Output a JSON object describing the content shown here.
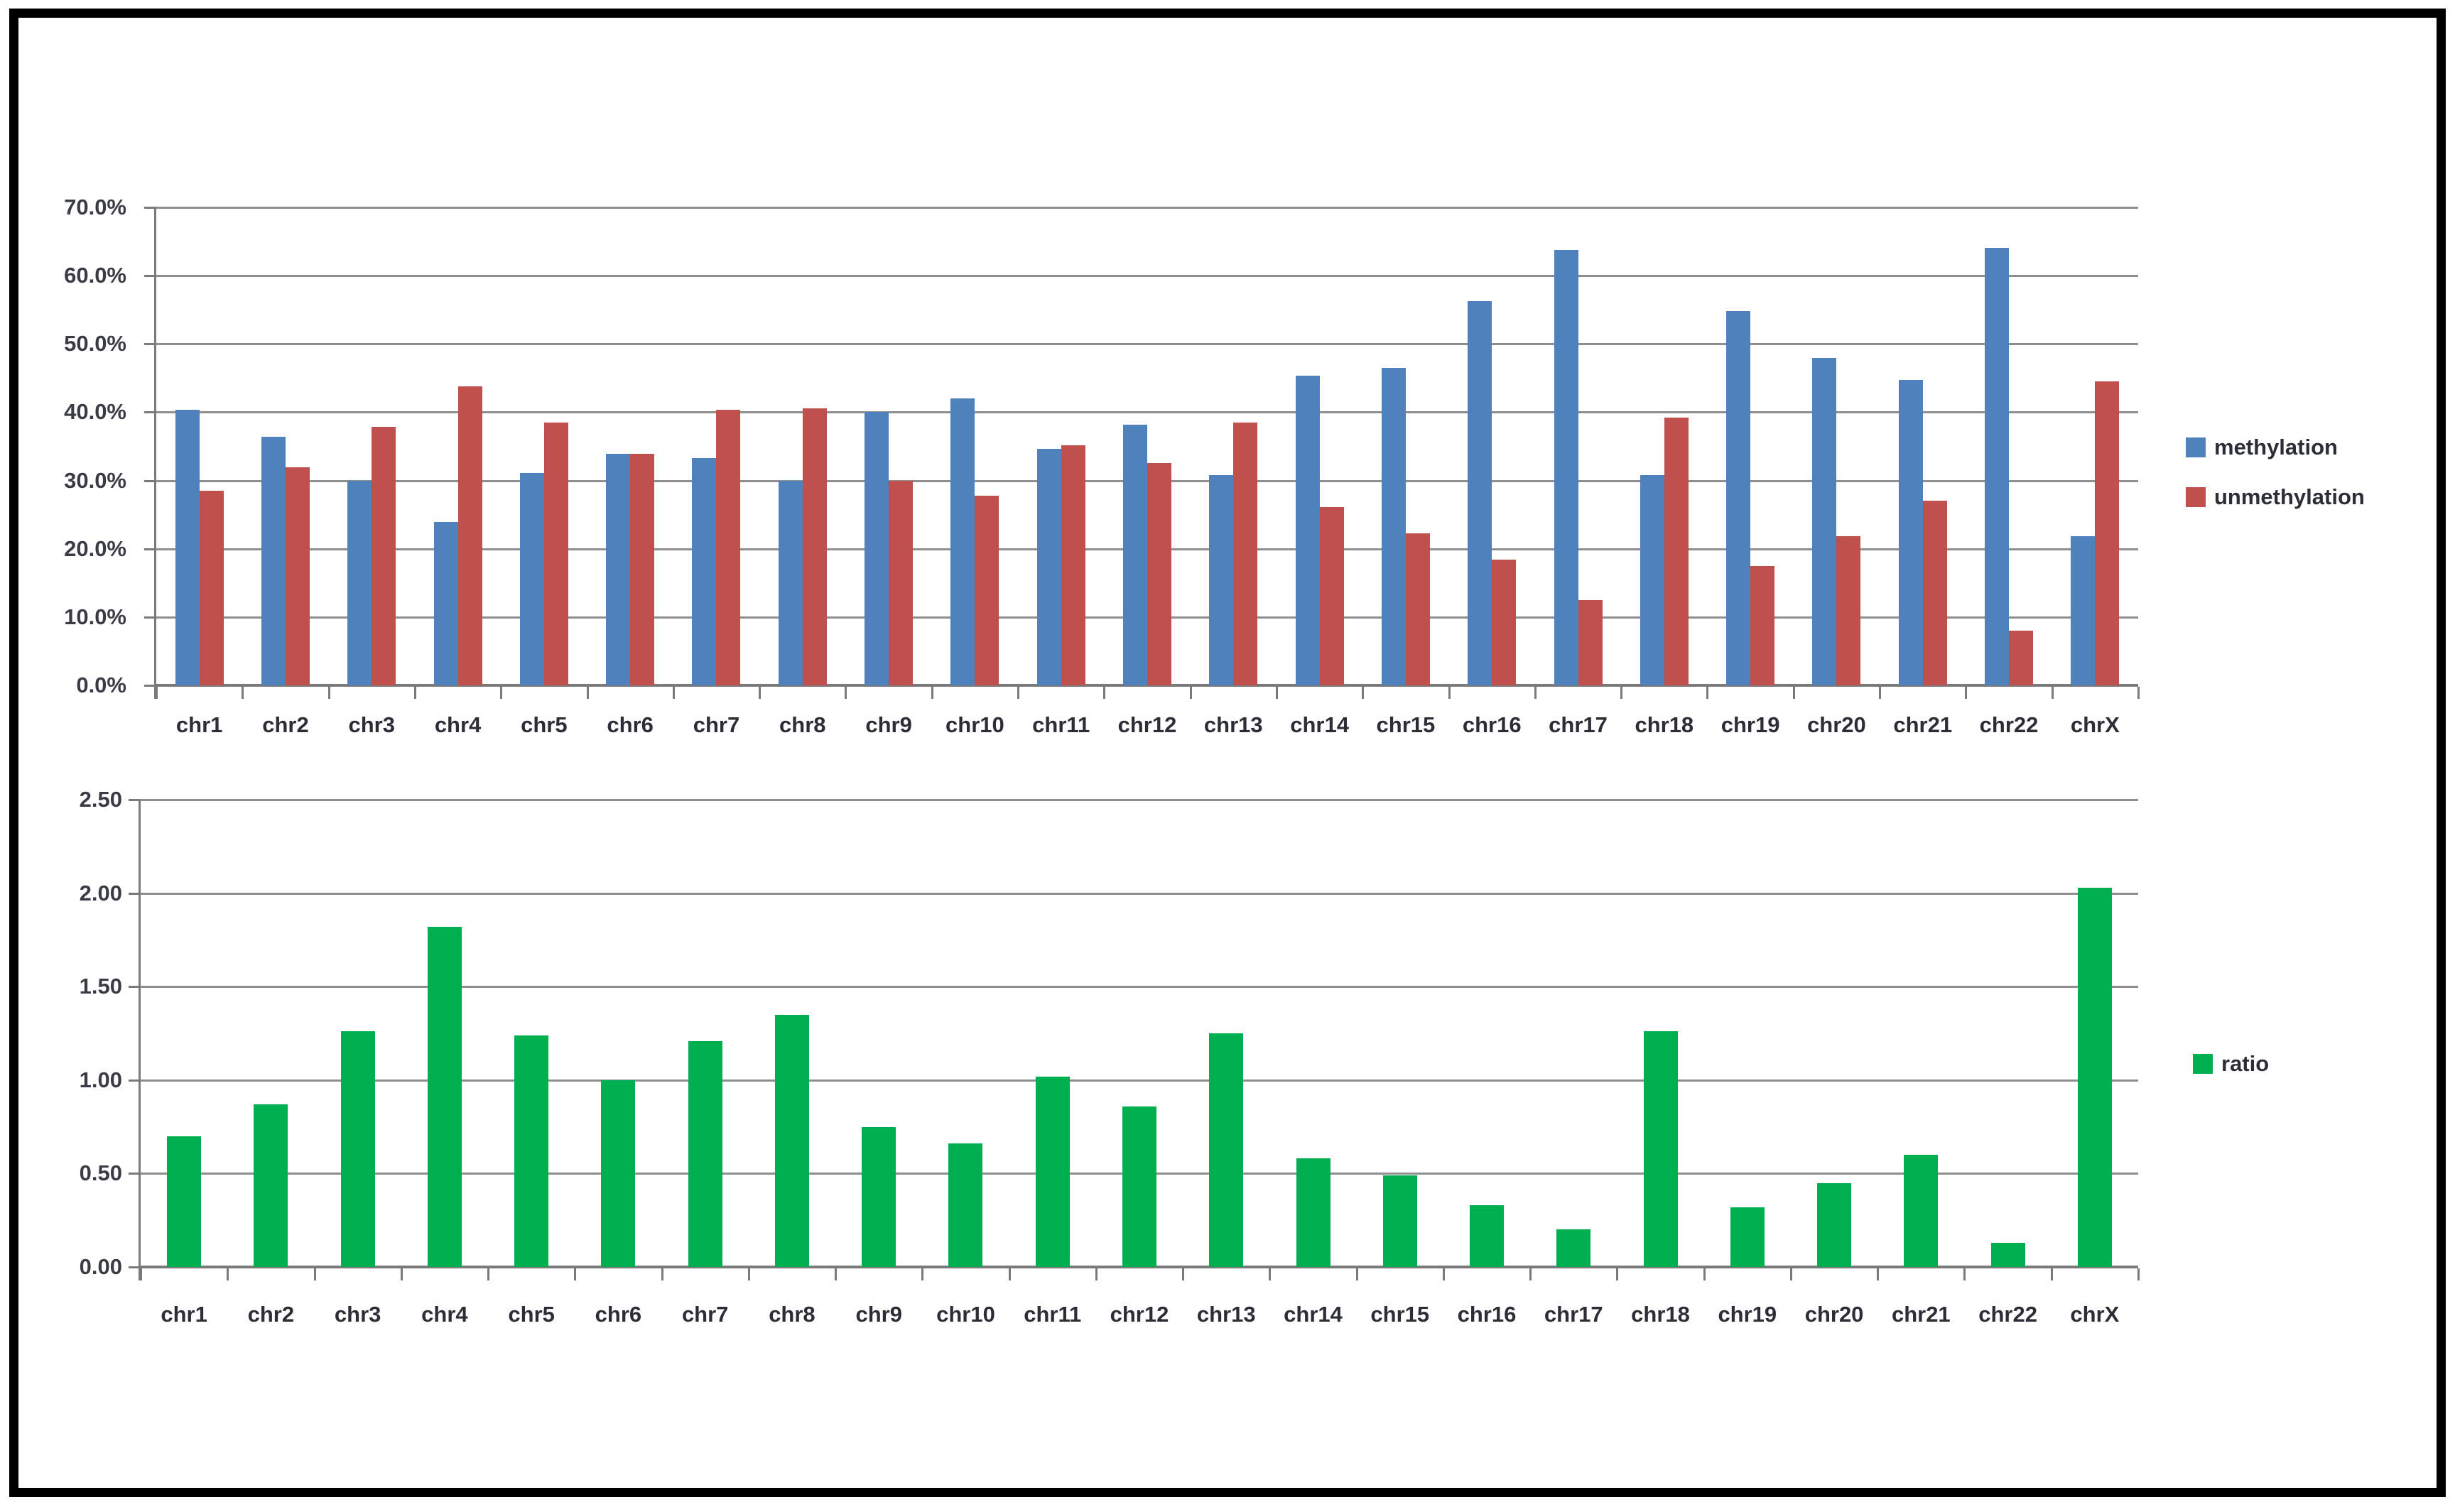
{
  "background": "#ffffff",
  "frame_color": "#000000",
  "accent_colors": {
    "methylation_blue": "#4f81bd",
    "unmethylation_red": "#c0504d",
    "ratio_green": "#00b050",
    "gridline_gray": "#8f8f8f",
    "axis_gray": "#7a7a7a"
  },
  "chart_data": [
    {
      "type": "bar",
      "title": "",
      "xlabel": "",
      "ylabel": "",
      "grid": true,
      "legend_position": "right",
      "ylim": [
        0,
        70
      ],
      "y_tick_labels": [
        "70.0%",
        "60.0%",
        "50.0%",
        "40.0%",
        "30.0%",
        "20.0%",
        "10.0%",
        "0.0%"
      ],
      "categories": [
        "chr1",
        "chr2",
        "chr3",
        "chr4",
        "chr5",
        "chr6",
        "chr7",
        "chr8",
        "chr9",
        "chr10",
        "chr11",
        "chr12",
        "chr13",
        "chr14",
        "chr15",
        "chr16",
        "chr17",
        "chr18",
        "chr19",
        "chr20",
        "chr21",
        "chr22",
        "chrX"
      ],
      "series": [
        {
          "name": "methylation",
          "color": "#4f81bd",
          "values": [
            40.4,
            36.4,
            30.0,
            23.9,
            31.1,
            33.9,
            33.3,
            30.0,
            40.0,
            42.0,
            34.6,
            38.2,
            30.8,
            45.3,
            46.5,
            56.3,
            63.8,
            30.8,
            54.8,
            48.0,
            44.7,
            64.1,
            21.8
          ]
        },
        {
          "name": "unmethylation",
          "color": "#c0504d",
          "values": [
            28.5,
            31.9,
            37.9,
            43.8,
            38.5,
            33.9,
            40.4,
            40.6,
            30.0,
            27.8,
            35.2,
            32.6,
            38.5,
            26.1,
            22.3,
            18.4,
            12.5,
            39.2,
            17.5,
            21.8,
            27.0,
            8.0,
            44.5
          ]
        }
      ]
    },
    {
      "type": "bar",
      "title": "",
      "xlabel": "",
      "ylabel": "",
      "grid": true,
      "legend_position": "right",
      "ylim": [
        0,
        2.5
      ],
      "y_tick_labels": [
        "2.50",
        "2.00",
        "1.50",
        "1.00",
        "0.50",
        "0.00"
      ],
      "categories": [
        "chr1",
        "chr2",
        "chr3",
        "chr4",
        "chr5",
        "chr6",
        "chr7",
        "chr8",
        "chr9",
        "chr10",
        "chr11",
        "chr12",
        "chr13",
        "chr14",
        "chr15",
        "chr16",
        "chr17",
        "chr18",
        "chr19",
        "chr20",
        "chr21",
        "chr22",
        "chrX"
      ],
      "series": [
        {
          "name": "ratio",
          "color": "#00b050",
          "values": [
            0.7,
            0.87,
            1.26,
            1.82,
            1.24,
            1.0,
            1.21,
            1.35,
            0.75,
            0.66,
            1.02,
            0.86,
            1.25,
            0.58,
            0.49,
            0.33,
            0.2,
            1.26,
            0.32,
            0.45,
            0.6,
            0.13,
            2.03
          ]
        }
      ]
    }
  ]
}
